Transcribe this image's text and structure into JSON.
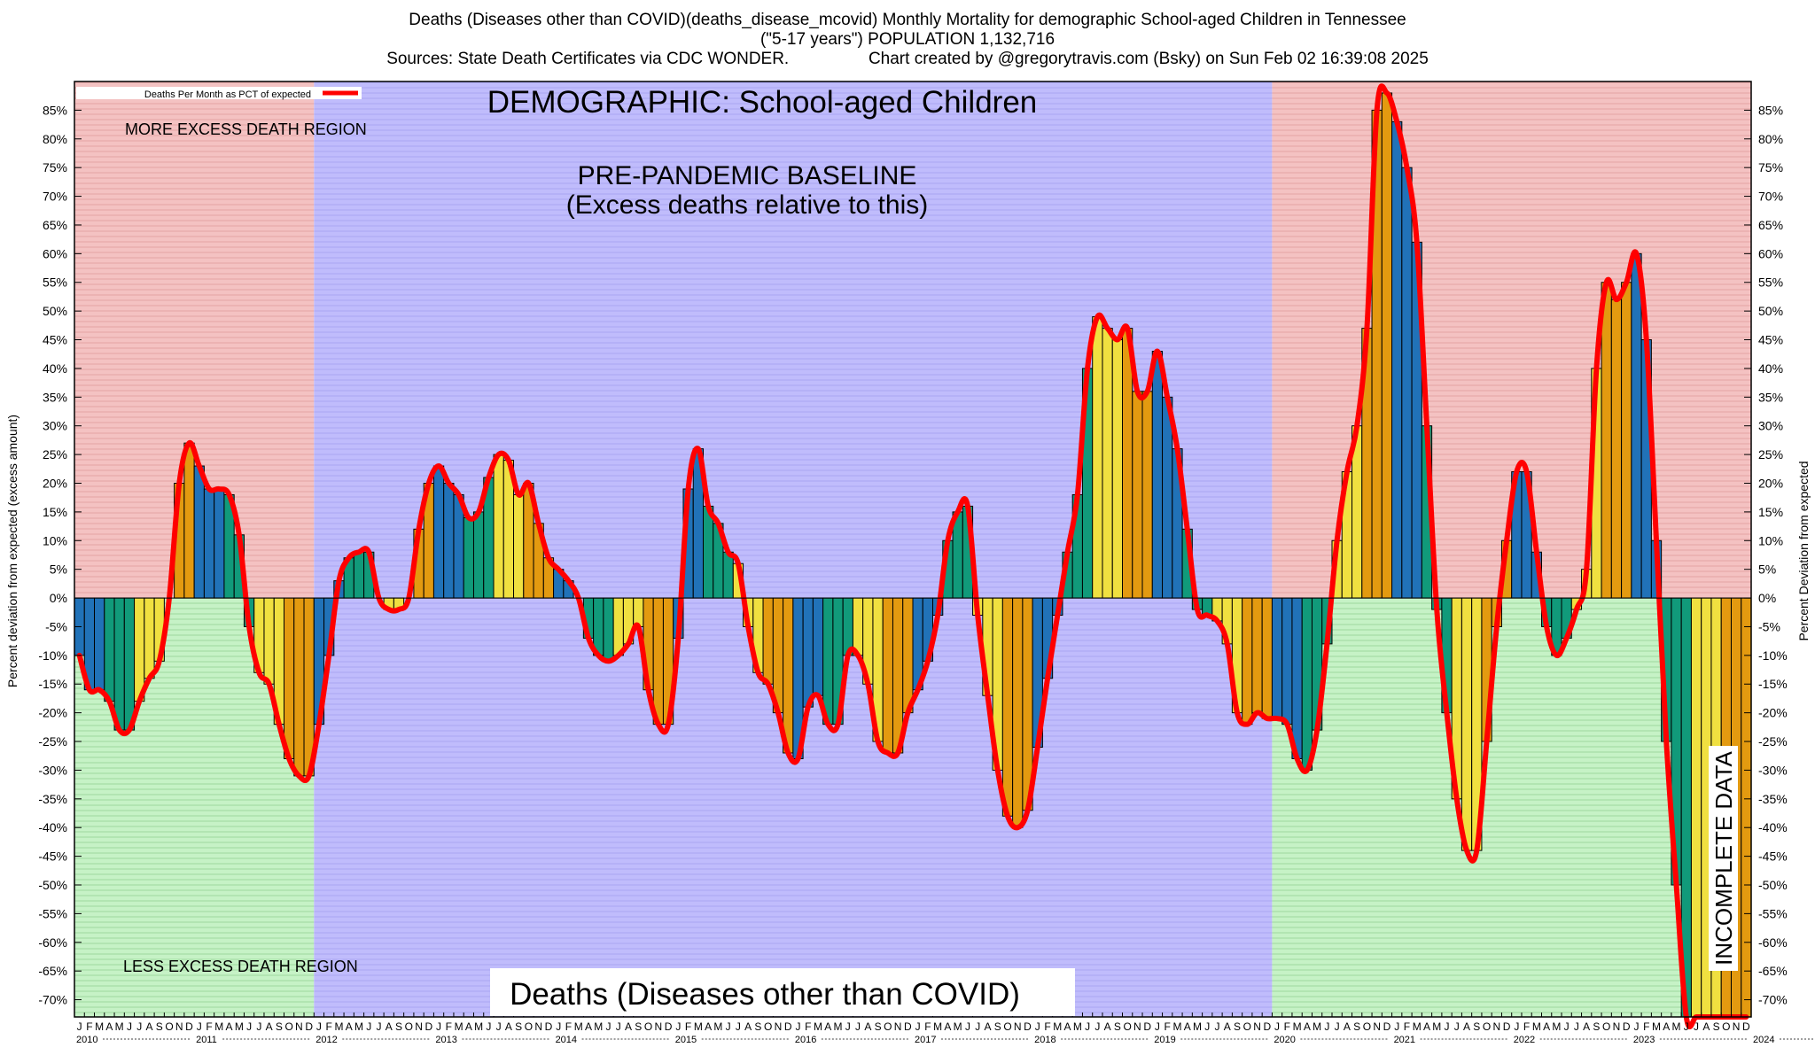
{
  "header": {
    "line1": "Deaths (Diseases other than COVID)(deaths_disease_mcovid) Monthly Mortality for demographic School-aged Children in Tennessee",
    "line2": "(\"5-17 years\") POPULATION 1,132,716",
    "line3": "Sources: State Death Certificates via CDC WONDER.                 Chart created by @gregorytravis.com (Bsky) on Sun Feb 02 16:39:08 2025"
  },
  "chart_data": {
    "type": "bar",
    "title": "Deaths (Diseases other than COVID)(deaths_disease_mcovid) Monthly Mortality for demographic School-aged Children in Tennessee",
    "ylabel_left": "Percent deviation from expected (excess amount)",
    "ylabel_right": "Percent Deviation from expected",
    "legend": "Deaths Per Month as PCT of expected",
    "legend_position": "top-left",
    "ylim": [
      -73,
      90
    ],
    "y_ticks": [
      85,
      80,
      75,
      70,
      65,
      60,
      55,
      50,
      45,
      40,
      35,
      30,
      25,
      20,
      15,
      10,
      5,
      0,
      -5,
      -10,
      -15,
      -20,
      -25,
      -30,
      -35,
      -40,
      -45,
      -50,
      -55,
      -60,
      -65,
      -70
    ],
    "x_start": "2010-01",
    "x_end": "2024-12",
    "month_letters": [
      "J",
      "F",
      "M",
      "A",
      "M",
      "J",
      "J",
      "A",
      "S",
      "O",
      "N",
      "D"
    ],
    "years": [
      "2010",
      "2011",
      "2012",
      "2013",
      "2014",
      "2015",
      "2016",
      "2017",
      "2018",
      "2019",
      "2020",
      "2021",
      "2022",
      "2023",
      "2024"
    ],
    "grid": "horizontal-hatch",
    "annotations": {
      "demographic": "DEMOGRAPHIC: School-aged Children",
      "more_excess": "MORE EXCESS DEATH REGION",
      "less_excess": "LESS EXCESS DEATH REGION",
      "baseline_1": "PRE-PANDEMIC BASELINE",
      "baseline_2": "(Excess deaths relative to this)",
      "bottom_label": "Deaths (Diseases other than COVID)",
      "incomplete": "INCOMPLETE DATA"
    },
    "regions": {
      "baseline_start": "2012-01",
      "baseline_end": "2019-12",
      "incomplete_start": "2024-03"
    },
    "bar_colors": [
      "#2172b8",
      "#119a7a",
      "#f0e040",
      "#e39a10"
    ],
    "line_color": "#ff0000",
    "series": [
      {
        "name": "Deaths Per Month as PCT of expected",
        "values": [
          -10,
          -16,
          -16,
          -18,
          -23,
          -23,
          -18,
          -14,
          -11,
          0,
          20,
          27,
          23,
          19,
          19,
          18,
          11,
          -5,
          -13,
          -15,
          -22,
          -28,
          -31,
          -31,
          -22,
          -10,
          3,
          7,
          8,
          8,
          0,
          -2,
          -2,
          0,
          12,
          20,
          23,
          20,
          18,
          14,
          15,
          21,
          25,
          24,
          18,
          20,
          13,
          7,
          5,
          3,
          0,
          -7,
          -10,
          -11,
          -10,
          -8,
          -5,
          -16,
          -22,
          -22,
          -7,
          19,
          26,
          16,
          13,
          8,
          6,
          -5,
          -13,
          -15,
          -20,
          -27,
          -28,
          -19,
          -17,
          -22,
          -22,
          -10,
          -10,
          -15,
          -25,
          -27,
          -27,
          -20,
          -16,
          -11,
          -3,
          10,
          15,
          16,
          -3,
          -17,
          -30,
          -38,
          -40,
          -37,
          -26,
          -14,
          -3,
          8,
          18,
          40,
          49,
          47,
          45,
          47,
          36,
          36,
          43,
          35,
          26,
          12,
          -2,
          -3,
          -4,
          -8,
          -20,
          -22,
          -20,
          -21,
          -21,
          -22,
          -28,
          -30,
          -23,
          -8,
          10,
          22,
          30,
          47,
          85,
          88,
          83,
          75,
          62,
          30,
          -2,
          -20,
          -35,
          -44,
          -44,
          -25,
          -5,
          10,
          22,
          22,
          8,
          -5,
          -10,
          -7,
          -2,
          5,
          40,
          55,
          52,
          55,
          60,
          45,
          10,
          -25,
          -50,
          -73,
          -73,
          -73,
          -73,
          -73,
          -73,
          -73
        ]
      }
    ]
  }
}
